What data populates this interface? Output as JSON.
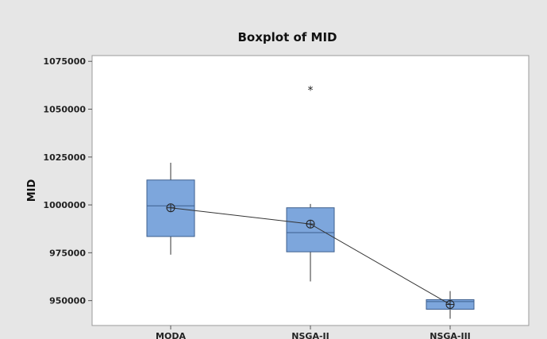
{
  "chart_data": {
    "type": "boxplot",
    "title": "Boxplot of MID",
    "xlabel": "",
    "ylabel": "MID",
    "ylim": [
      937000,
      1078000
    ],
    "yticks": [
      950000,
      975000,
      1000000,
      1025000,
      1050000,
      1075000
    ],
    "categories": [
      "MODA",
      "NSGA-II",
      "NSGA-III"
    ],
    "boxes": [
      {
        "name": "MODA",
        "whisker_low": 974000,
        "q1": 983500,
        "median": 999500,
        "q3": 1013000,
        "whisker_high": 1022000,
        "mean": 998500,
        "outliers": []
      },
      {
        "name": "NSGA-II",
        "whisker_low": 960000,
        "q1": 975500,
        "median": 985500,
        "q3": 998500,
        "whisker_high": 1000500,
        "mean": 990000,
        "outliers": [
          1060000
        ]
      },
      {
        "name": "NSGA-III",
        "whisker_low": 940500,
        "q1": 945500,
        "median": 949500,
        "q3": 950500,
        "whisker_high": 955000,
        "mean": 948000,
        "outliers": []
      }
    ],
    "mean_connect_line": true,
    "colors": {
      "box_fill": "#7da6dc",
      "box_stroke": "#3d5f8e",
      "line": "#333333",
      "background": "#e6e6e6",
      "plot_area": "#ffffff"
    },
    "grid": false
  }
}
